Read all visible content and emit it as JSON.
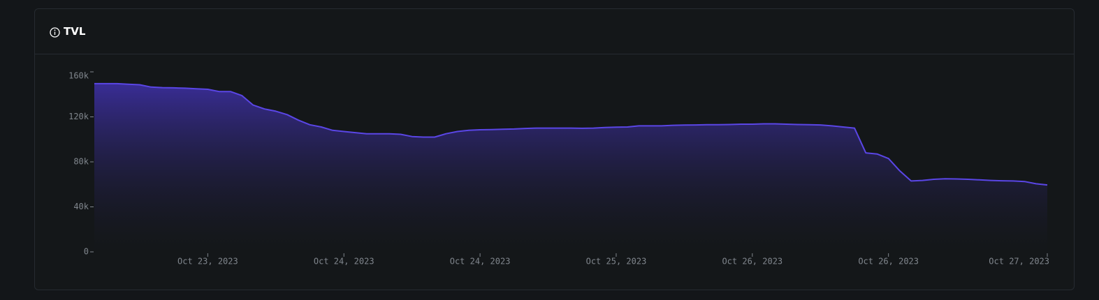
{
  "chart_data": {
    "type": "area",
    "title": "TVL",
    "categories": [
      null,
      null,
      null,
      null,
      null,
      null,
      null,
      null,
      null,
      null,
      "Oct 23, 2023",
      null,
      null,
      null,
      null,
      null,
      null,
      null,
      null,
      null,
      null,
      null,
      "Oct 24, 2023",
      null,
      null,
      null,
      null,
      null,
      null,
      null,
      null,
      null,
      null,
      null,
      "Oct 24, 2023",
      null,
      null,
      null,
      null,
      null,
      null,
      null,
      null,
      null,
      null,
      null,
      "Oct 25, 2023",
      null,
      null,
      null,
      null,
      null,
      null,
      null,
      null,
      null,
      null,
      null,
      "Oct 26, 2023",
      null,
      null,
      null,
      null,
      null,
      null,
      null,
      null,
      null,
      null,
      null,
      "Oct 26, 2023",
      null,
      null,
      null,
      null,
      null,
      null,
      null,
      null,
      null,
      null,
      null,
      null,
      null,
      "Oct 27, 2023"
    ],
    "values": [
      149500,
      149500,
      149500,
      149000,
      148500,
      146500,
      146000,
      145800,
      145500,
      145000,
      144500,
      142500,
      142500,
      139000,
      130500,
      127000,
      125000,
      122000,
      117000,
      113000,
      111000,
      108000,
      107000,
      106000,
      105000,
      105000,
      105000,
      104500,
      102500,
      102000,
      102000,
      105000,
      107000,
      108000,
      108500,
      108700,
      109000,
      109200,
      109700,
      110000,
      110000,
      110000,
      110000,
      109800,
      110000,
      110500,
      110800,
      111000,
      112000,
      112000,
      112000,
      112500,
      112700,
      112800,
      113000,
      113000,
      113200,
      113500,
      113500,
      113800,
      113800,
      113500,
      113200,
      113000,
      112800,
      112000,
      111000,
      110000,
      88000,
      87000,
      83000,
      72000,
      63000,
      63500,
      64500,
      65000,
      64800,
      64500,
      64000,
      63500,
      63200,
      63000,
      62500,
      60500,
      59500
    ],
    "color": "#5a46e6",
    "ylim": [
      0,
      160000
    ],
    "yticks": [
      0,
      {
        "value": 40000,
        "label": "40k"
      },
      {
        "value": 80000,
        "label": "80k"
      },
      {
        "value": 120000,
        "label": "120k"
      },
      {
        "value": 160000,
        "label": "160k"
      }
    ]
  }
}
